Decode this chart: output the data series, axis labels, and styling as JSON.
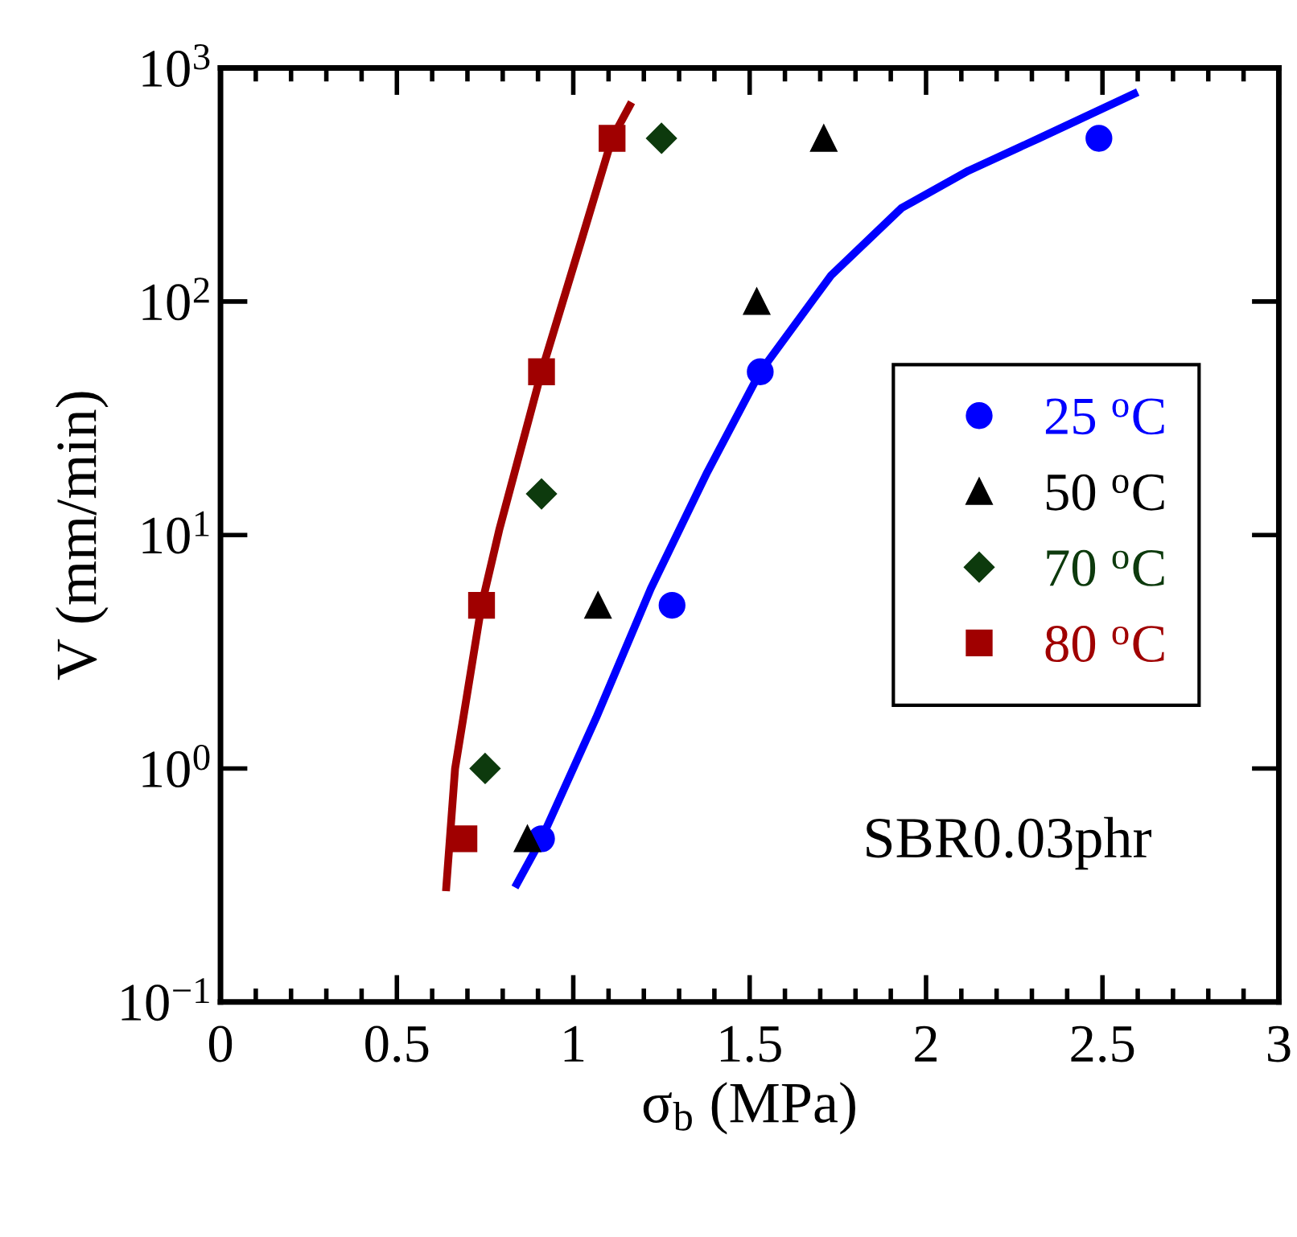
{
  "chart_data": {
    "type": "scatter",
    "xlabel": "σ$_{b}$ (MPa)",
    "ylabel": "V (mm/min)",
    "log": "y",
    "xlim": [
      0,
      3
    ],
    "xticks": [
      0,
      0.5,
      1,
      1.5,
      2,
      2.5,
      3
    ],
    "ylim": [
      0.1,
      1000
    ],
    "yticks": [
      {
        "value": 0.1,
        "label": "10$^{−1}$"
      },
      {
        "value": 1,
        "label": "10$^{0}$"
      },
      {
        "value": 10,
        "label": "10$^{1}$"
      },
      {
        "value": 100,
        "label": "10$^{2}$"
      },
      {
        "value": 1000,
        "label": "10$^{3}$"
      }
    ],
    "grid": false,
    "legend": "right",
    "annotations": [
      "SBR0.03phr"
    ],
    "series": [
      {
        "name": "25 $^{o}$C",
        "color": "#0000ff",
        "marker": "circle",
        "x": [
          0.91,
          1.28,
          1.53,
          2.49
        ],
        "values": [
          0.5,
          5,
          50,
          500
        ]
      },
      {
        "name": "50 $^{o}$C",
        "color": "#000000",
        "marker": "triangle",
        "x": [
          0.87,
          1.07,
          1.52,
          1.71
        ],
        "values": [
          0.5,
          5,
          100,
          500
        ]
      },
      {
        "name": "70 $^{o}$C",
        "color": "#0d3a0d",
        "marker": "diamond",
        "x": [
          0.75,
          0.91,
          1.25
        ],
        "values": [
          1,
          15,
          500
        ]
      },
      {
        "name": "80 $^{o}$C",
        "color": "#a00000",
        "marker": "square",
        "x": [
          0.69,
          0.74,
          0.91,
          1.11
        ],
        "values": [
          0.5,
          5,
          50,
          500
        ]
      },
      {
        "type": "line",
        "color": "#a00000",
        "marker": "none",
        "x": [
          0.64,
          0.665,
          0.74,
          0.79,
          0.91,
          1.025,
          1.11,
          1.16
        ],
        "values": [
          0.31,
          1.0,
          5,
          10.5,
          50,
          187,
          500,
          690
        ]
      },
      {
        "type": "line",
        "color": "#0000ff",
        "marker": "none",
        "x": [
          0.84,
          0.91,
          1.065,
          1.22,
          1.38,
          1.53,
          1.73,
          1.93,
          2.12,
          2.32,
          2.59
        ],
        "values": [
          0.32,
          0.5,
          1.65,
          5.9,
          18.6,
          50,
          129,
          251,
          363,
          500,
          776
        ]
      }
    ]
  }
}
